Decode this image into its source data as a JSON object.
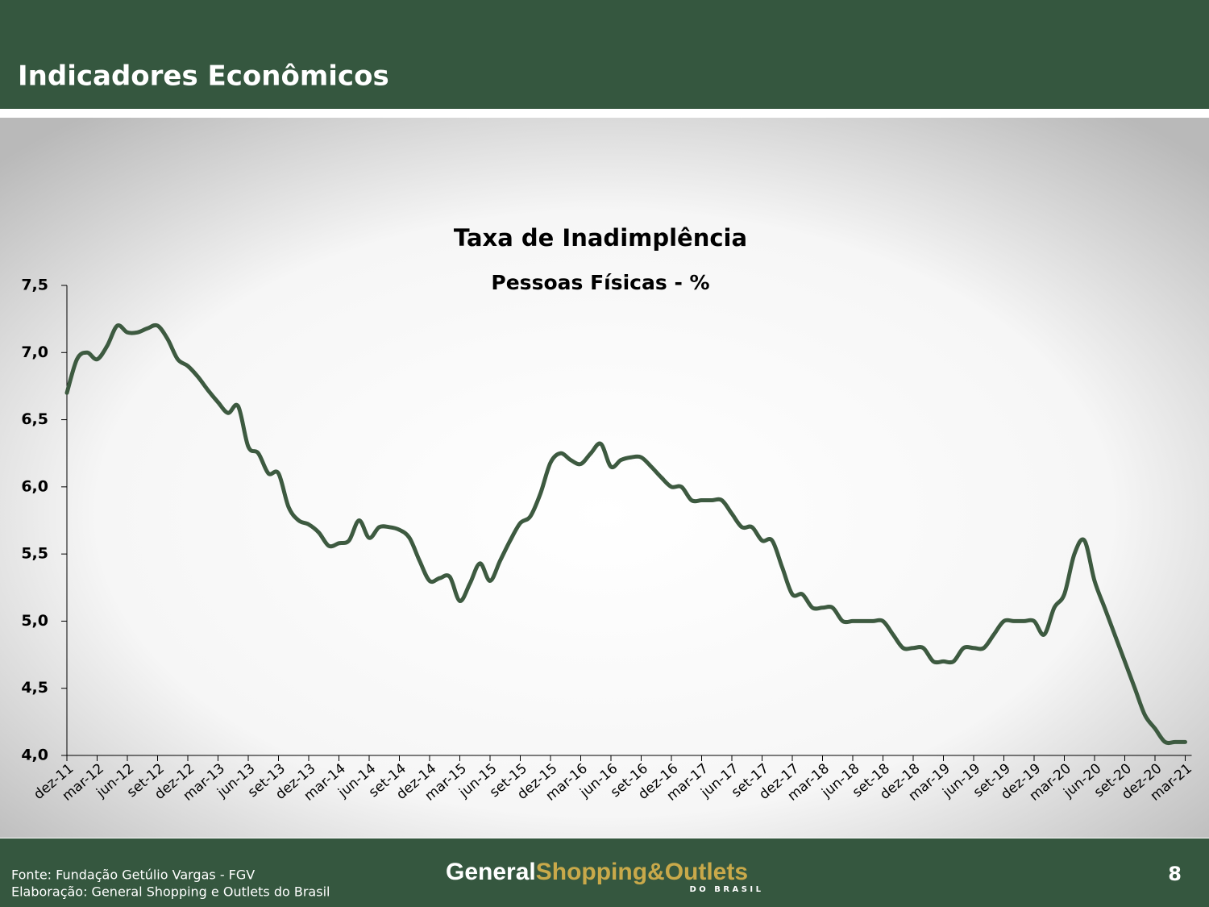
{
  "header": {
    "title": "Indicadores Econômicos"
  },
  "footer": {
    "source": "Fonte: Fundação Getúlio Vargas - FGV",
    "credit": "Elaboração: General Shopping e Outlets do Brasil",
    "logo_general": "General",
    "logo_shopping": "Shopping&Outlets",
    "logo_sub": "D O   B R A S I L",
    "page": "8"
  },
  "chart_data": {
    "type": "line",
    "title": "Taxa de Inadimplência",
    "subtitle": "Pessoas Físicas - %",
    "categories": [
      "dez-11",
      null,
      null,
      "mar-12",
      null,
      null,
      "jun-12",
      null,
      null,
      "set-12",
      null,
      null,
      "dez-12",
      null,
      null,
      "mar-13",
      null,
      null,
      "jun-13",
      null,
      null,
      "set-13",
      null,
      null,
      "dez-13",
      null,
      null,
      "mar-14",
      null,
      null,
      "jun-14",
      null,
      null,
      "set-14",
      null,
      null,
      "dez-14",
      null,
      null,
      "mar-15",
      null,
      null,
      "jun-15",
      null,
      null,
      "set-15",
      null,
      null,
      "dez-15",
      null,
      null,
      "mar-16",
      null,
      null,
      "jun-16",
      null,
      null,
      "set-16",
      null,
      null,
      "dez-16",
      null,
      null,
      "mar-17",
      null,
      null,
      "jun-17",
      null,
      null,
      "set-17",
      null,
      null,
      "dez-17",
      null,
      null,
      "mar-18",
      null,
      null,
      "jun-18",
      null,
      null,
      "set-18",
      null,
      null,
      "dez-18",
      null,
      null,
      "mar-19",
      null,
      null,
      "jun-19",
      null,
      null,
      "set-19",
      null,
      null,
      "dez-19",
      null,
      null,
      "mar-20",
      null,
      null,
      "jun-20",
      null,
      null,
      "set-20",
      null,
      null,
      "dez-20",
      null,
      null,
      "mar-21"
    ],
    "series": [
      {
        "name": "Taxa de Inadimplência",
        "color": "#3d5a40",
        "values": [
          6.7,
          6.95,
          7.0,
          6.95,
          7.05,
          7.2,
          7.15,
          7.15,
          7.18,
          7.2,
          7.1,
          6.95,
          6.9,
          6.82,
          6.72,
          6.63,
          6.55,
          6.6,
          6.3,
          6.25,
          6.1,
          6.1,
          5.85,
          5.75,
          5.72,
          5.66,
          5.56,
          5.58,
          5.6,
          5.75,
          5.62,
          5.7,
          5.7,
          5.68,
          5.62,
          5.45,
          5.3,
          5.32,
          5.33,
          5.15,
          5.28,
          5.43,
          5.3,
          5.45,
          5.6,
          5.73,
          5.78,
          5.95,
          6.18,
          6.25,
          6.2,
          6.17,
          6.25,
          6.32,
          6.15,
          6.2,
          6.22,
          6.22,
          6.15,
          6.07,
          6.0,
          6.0,
          5.9,
          5.9,
          5.9,
          5.9,
          5.8,
          5.7,
          5.7,
          5.6,
          5.6,
          5.4,
          5.2,
          5.2,
          5.1,
          5.1,
          5.1,
          5.0,
          5.0,
          5.0,
          5.0,
          5.0,
          4.9,
          4.8,
          4.8,
          4.8,
          4.7,
          4.7,
          4.7,
          4.8,
          4.8,
          4.8,
          4.9,
          5.0,
          5.0,
          5.0,
          5.0,
          4.9,
          5.1,
          5.2,
          5.5,
          5.6,
          5.3,
          5.1,
          4.9,
          4.7,
          4.5,
          4.3,
          4.2,
          4.1,
          4.1,
          4.1
        ]
      }
    ],
    "ylim": [
      4,
      7.5
    ],
    "yticks": [
      {
        "value": 4,
        "label": "4,0"
      },
      {
        "value": 4.5,
        "label": "4,5"
      },
      {
        "value": 5,
        "label": "5,0"
      },
      {
        "value": 5.5,
        "label": "5,5"
      },
      {
        "value": 6,
        "label": "6,0"
      },
      {
        "value": 6.5,
        "label": "6,5"
      },
      {
        "value": 7,
        "label": "7,0"
      },
      {
        "value": 7.5,
        "label": "7,5"
      }
    ],
    "grid": false
  }
}
